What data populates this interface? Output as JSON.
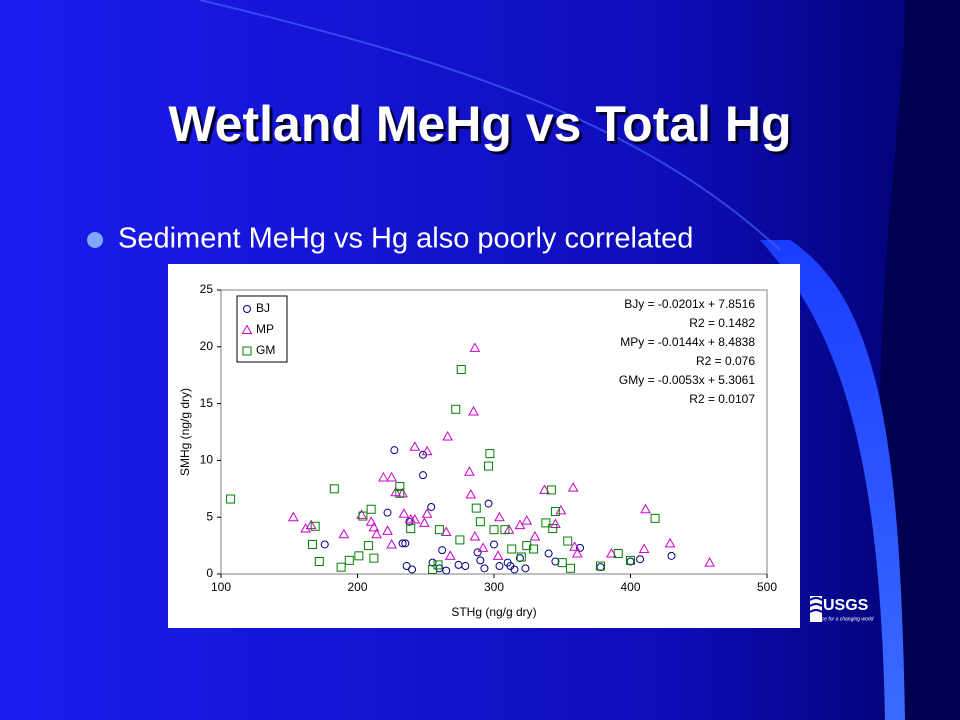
{
  "slide": {
    "title": "Wetland MeHg vs Total Hg",
    "bullets": [
      "Sediment MeHg vs Hg also poorly correlated"
    ],
    "logo": {
      "name": "USGS",
      "tagline": "science for a changing world"
    }
  },
  "chart_data": {
    "type": "scatter",
    "x_label": "STHg (ng/g dry)",
    "y_label": "SMHg (ng/g dry)",
    "xlim": [
      100,
      500
    ],
    "xticks": [
      100,
      200,
      300,
      400,
      500
    ],
    "ylim": [
      0,
      25
    ],
    "yticks": [
      0,
      5,
      10,
      15,
      20,
      25
    ],
    "grid": false,
    "legend": "upper-left",
    "annotations": [
      "BJy = -0.0201x + 7.8516",
      "R2 = 0.1482",
      "MPy = -0.0144x + 8.4838",
      "R2 = 0.076",
      "GMy = -0.0053x + 5.3061",
      "R2 = 0.0107"
    ],
    "series": [
      {
        "name": "BJ",
        "color": "#000080",
        "marker": "circle",
        "x": [
          227,
          248,
          248,
          254,
          222,
          238,
          262,
          176,
          233,
          235,
          236,
          240,
          255,
          260,
          265,
          274,
          279,
          288,
          290,
          296,
          300,
          293,
          304,
          310,
          312,
          315,
          319,
          323,
          340,
          345,
          363,
          378,
          400,
          407,
          430
        ],
        "values": [
          10.9,
          10.5,
          8.7,
          5.9,
          5.4,
          4.6,
          2.1,
          2.6,
          2.7,
          2.7,
          0.7,
          0.4,
          1.0,
          0.5,
          0.3,
          0.8,
          0.7,
          1.9,
          1.2,
          6.2,
          2.6,
          0.5,
          0.7,
          1.0,
          0.7,
          0.4,
          1.4,
          0.5,
          1.8,
          1.1,
          2.3,
          0.6,
          1.1,
          1.3,
          1.6
        ]
      },
      {
        "name": "MP",
        "color": "#cc00cc",
        "marker": "triangle",
        "x": [
          286,
          285,
          266,
          242,
          251,
          282,
          219,
          225,
          228,
          233,
          283,
          337,
          358,
          153,
          190,
          203,
          210,
          212,
          214,
          222,
          225,
          234,
          239,
          242,
          249,
          251,
          162,
          166,
          265,
          286,
          304,
          311,
          319,
          324,
          330,
          345,
          349,
          359,
          361,
          386,
          410,
          411,
          429,
          458,
          268,
          292,
          303
        ],
        "values": [
          19.9,
          14.3,
          12.1,
          11.2,
          10.8,
          9.0,
          8.5,
          8.5,
          7.2,
          7.1,
          7.0,
          7.4,
          7.6,
          5.0,
          3.5,
          5.2,
          4.6,
          4.1,
          3.5,
          3.8,
          2.6,
          5.3,
          4.8,
          4.8,
          4.5,
          5.3,
          4.0,
          4.3,
          3.7,
          3.3,
          5.0,
          3.9,
          4.3,
          4.7,
          3.3,
          4.4,
          5.6,
          2.4,
          1.8,
          1.8,
          2.2,
          5.7,
          2.7,
          1.0,
          1.6,
          2.3,
          1.6
        ]
      },
      {
        "name": "GM",
        "color": "#008000",
        "marker": "square",
        "x": [
          107,
          183,
          276,
          272,
          297,
          296,
          287,
          290,
          169,
          167,
          172,
          188,
          194,
          201,
          204,
          210,
          208,
          212,
          231,
          231,
          239,
          260,
          255,
          259,
          300,
          308,
          313,
          320,
          324,
          329,
          338,
          342,
          343,
          345,
          354,
          350,
          356,
          378,
          391,
          400,
          418,
          275
        ],
        "values": [
          6.6,
          7.5,
          18.0,
          14.5,
          10.6,
          9.5,
          5.8,
          4.6,
          4.2,
          2.6,
          1.1,
          0.6,
          1.2,
          1.6,
          5.1,
          5.7,
          2.5,
          1.4,
          7.7,
          7.1,
          4.0,
          3.9,
          0.4,
          0.8,
          3.9,
          3.9,
          2.2,
          1.5,
          2.5,
          2.2,
          4.5,
          7.4,
          4.0,
          5.5,
          2.9,
          1.0,
          0.5,
          0.7,
          1.8,
          1.2,
          4.9,
          3.0
        ]
      }
    ]
  }
}
